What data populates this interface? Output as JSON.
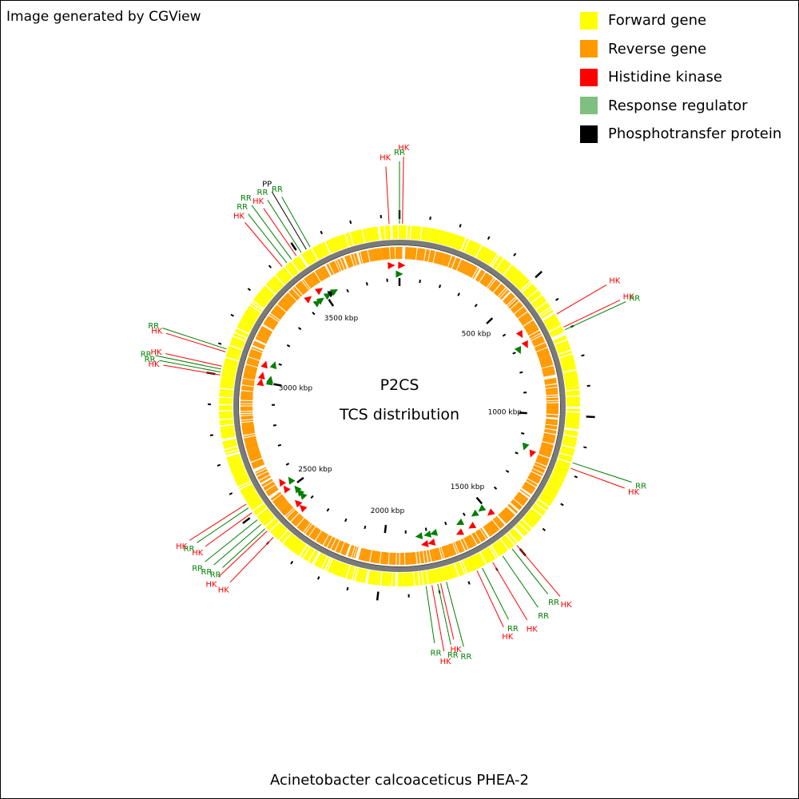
{
  "attribution": "Image generated by CGView",
  "caption": "Acinetobacter calcoaceticus PHEA-2",
  "center_title": "P2CS",
  "center_subtitle": "TCS distribution",
  "colors": {
    "forward": "#ffff00",
    "reverse": "#ff9900",
    "hk": "#ff0000",
    "rr": "#7fbf7f",
    "pp": "#000000",
    "hk_label": "#ff0000",
    "rr_label": "#007f00",
    "rr_marker": "#007f00",
    "backbone": "#7a7a7a"
  },
  "legend": [
    {
      "label": "Forward gene",
      "color": "#ffff00"
    },
    {
      "label": "Reverse gene",
      "color": "#ff9900"
    },
    {
      "label": "Histidine kinase",
      "color": "#ff0000"
    },
    {
      "label": "Response regulator",
      "color": "#7fbf7f"
    },
    {
      "label": "Phosphotransfer protein",
      "color": "#000000"
    }
  ],
  "genome": {
    "length_kbp": 3860,
    "ruler_labels": [
      {
        "kbp": 500,
        "text": "500 kbp"
      },
      {
        "kbp": 1000,
        "text": "1000 kbp"
      },
      {
        "kbp": 1500,
        "text": "1500 kbp"
      },
      {
        "kbp": 2000,
        "text": "2000 kbp"
      },
      {
        "kbp": 2500,
        "text": "2500 kbp"
      },
      {
        "kbp": 3000,
        "text": "3000 kbp"
      },
      {
        "kbp": 3500,
        "text": "3500 kbp"
      }
    ]
  },
  "features": [
    {
      "label": "HK",
      "type": "hk",
      "kbp": 3825
    },
    {
      "label": "RR",
      "type": "rr",
      "kbp": 0
    },
    {
      "label": "HK",
      "type": "hk",
      "kbp": 10
    },
    {
      "label": "HK",
      "type": "hk",
      "kbp": 640
    },
    {
      "label": "HK",
      "type": "hk",
      "kbp": 690
    },
    {
      "label": "RR",
      "type": "rr",
      "kbp": 700
    },
    {
      "label": "HK",
      "type": "hk",
      "kbp": 1180
    },
    {
      "label": "RR",
      "type": "rr",
      "kbp": 1160
    },
    {
      "label": "HK",
      "type": "hk",
      "kbp": 1500
    },
    {
      "label": "RR",
      "type": "rr",
      "kbp": 1520
    },
    {
      "label": "RR",
      "type": "rr",
      "kbp": 1560
    },
    {
      "label": "HK",
      "type": "hk",
      "kbp": 1600
    },
    {
      "label": "RR",
      "type": "rr",
      "kbp": 1640
    },
    {
      "label": "HK",
      "type": "hk",
      "kbp": 1660
    },
    {
      "label": "RR",
      "type": "rr",
      "kbp": 1770
    },
    {
      "label": "HK",
      "type": "hk",
      "kbp": 1790
    },
    {
      "label": "RR",
      "type": "rr",
      "kbp": 1800
    },
    {
      "label": "HK",
      "type": "hk",
      "kbp": 1820
    },
    {
      "label": "RR",
      "type": "rr",
      "kbp": 1840
    },
    {
      "label": "HK",
      "type": "hk",
      "kbp": 2400
    },
    {
      "label": "HK",
      "type": "hk",
      "kbp": 2430
    },
    {
      "label": "RR",
      "type": "rr",
      "kbp": 2440
    },
    {
      "label": "RR",
      "type": "rr",
      "kbp": 2460
    },
    {
      "label": "RR",
      "type": "rr",
      "kbp": 2480
    },
    {
      "label": "HK",
      "type": "hk",
      "kbp": 2510
    },
    {
      "label": "RR",
      "type": "rr",
      "kbp": 2530
    },
    {
      "label": "HK",
      "type": "hk",
      "kbp": 2545
    },
    {
      "label": "HK",
      "type": "hk",
      "kbp": 3000
    },
    {
      "label": "RR",
      "type": "rr",
      "kbp": 3010
    },
    {
      "label": "RR",
      "type": "rr",
      "kbp": 3020
    },
    {
      "label": "HK",
      "type": "hk",
      "kbp": 3030
    },
    {
      "label": "HK",
      "type": "hk",
      "kbp": 3080
    },
    {
      "label": "RR",
      "type": "rr",
      "kbp": 3090
    },
    {
      "label": "HK",
      "type": "hk",
      "kbp": 3430
    },
    {
      "label": "RR",
      "type": "rr",
      "kbp": 3450
    },
    {
      "label": "RR",
      "type": "rr",
      "kbp": 3470
    },
    {
      "label": "HK",
      "type": "hk",
      "kbp": 3490
    },
    {
      "label": "RR",
      "type": "rr",
      "kbp": 3510
    },
    {
      "label": "PP",
      "type": "pp",
      "kbp": 3530
    },
    {
      "label": "RR",
      "type": "rr",
      "kbp": 3545
    }
  ]
}
